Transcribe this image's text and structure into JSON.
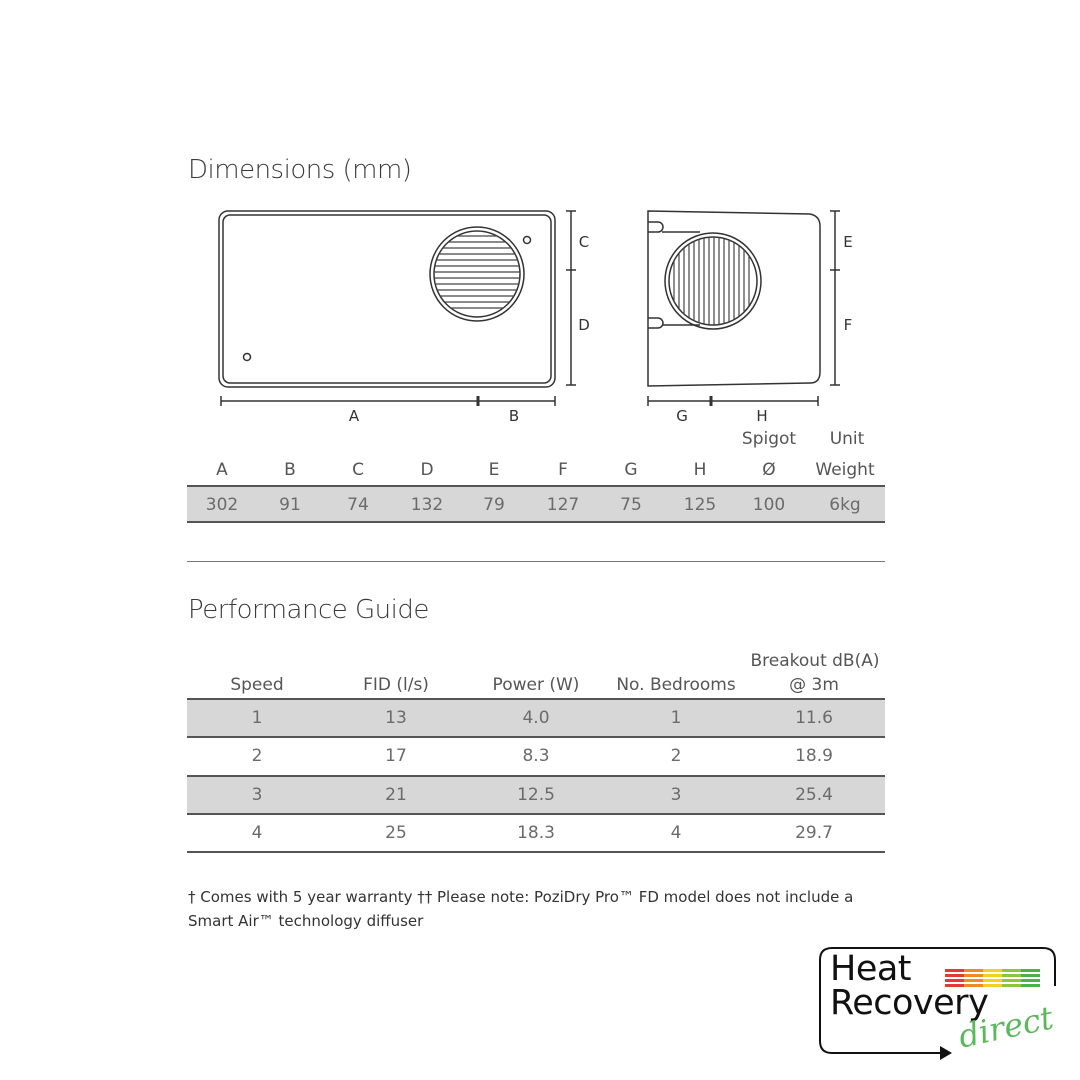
{
  "dimensions": {
    "title": "Dimensions (mm)",
    "diagram_labels": {
      "A": "A",
      "B": "B",
      "C": "C",
      "D": "D",
      "E": "E",
      "F": "F",
      "G": "G",
      "H": "H"
    },
    "header_top": {
      "spigot": "Spigot",
      "unit": "Unit"
    },
    "columns": [
      "A",
      "B",
      "C",
      "D",
      "E",
      "F",
      "G",
      "H",
      "Ø",
      "Weight"
    ],
    "values": [
      "302",
      "91",
      "74",
      "132",
      "79",
      "127",
      "75",
      "125",
      "100",
      "6kg"
    ]
  },
  "performance": {
    "title": "Performance Guide",
    "columns": [
      "Speed",
      "FID (l/s)",
      "Power (W)",
      "No. Bedrooms",
      "@ 3m"
    ],
    "breakout_top": "Breakout dB(A)",
    "rows": [
      [
        "1",
        "13",
        "4.0",
        "1",
        "11.6"
      ],
      [
        "2",
        "17",
        "8.3",
        "2",
        "18.9"
      ],
      [
        "3",
        "21",
        "12.5",
        "3",
        "25.4"
      ],
      [
        "4",
        "25",
        "18.3",
        "4",
        "29.7"
      ]
    ]
  },
  "footnote": {
    "line1": "† Comes with 5 year warranty  †† Please note: PoziDry Pro™ FD model does not include a",
    "line2": "Smart Air™ technology diffuser"
  },
  "logo": {
    "line1": "Heat",
    "line2": "Recovery",
    "line3": "direct",
    "colors": [
      "#e53935",
      "#f08a24",
      "#f2d21b",
      "#8cc63f",
      "#4caf50"
    ]
  }
}
